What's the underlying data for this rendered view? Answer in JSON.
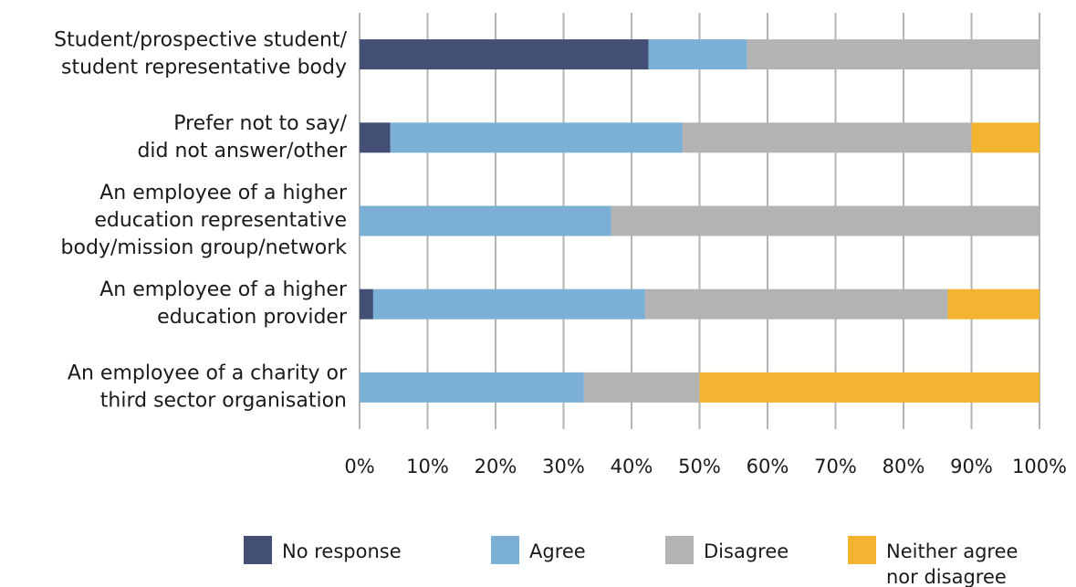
{
  "chart_data": {
    "type": "bar",
    "orientation": "horizontal",
    "stacked": true,
    "title": "",
    "xlabel": "",
    "ylabel": "",
    "xlim": [
      0,
      100
    ],
    "x_ticks": [
      "0%",
      "10%",
      "20%",
      "30%",
      "40%",
      "50%",
      "60%",
      "70%",
      "80%",
      "90%",
      "100%"
    ],
    "grid": "vertical",
    "legend_position": "bottom",
    "categories": [
      [
        "Student/prospective student/",
        "student representative body"
      ],
      [
        "Prefer not to say/",
        "did not answer/other"
      ],
      [
        "An employee of a higher",
        "education representative",
        "body/mission group/network"
      ],
      [
        "An employee of a higher",
        "education provider"
      ],
      [
        "An employee of a charity or",
        "third sector organisation"
      ]
    ],
    "series": [
      {
        "name": "No response",
        "color": "#434f75",
        "values": [
          42.5,
          4.5,
          0,
          2,
          0
        ]
      },
      {
        "name": "Agree",
        "color": "#7bafd4",
        "values": [
          14.5,
          43,
          37,
          40,
          33
        ]
      },
      {
        "name": "Disagree",
        "color": "#b3b3b3",
        "values": [
          43,
          42.5,
          63,
          44.5,
          17
        ]
      },
      {
        "name": "Neither agree nor disagree",
        "color": "#f2b431",
        "values": [
          0,
          10,
          0,
          13.5,
          50
        ]
      }
    ],
    "legend": [
      {
        "lines": [
          "No response"
        ]
      },
      {
        "lines": [
          "Agree"
        ]
      },
      {
        "lines": [
          "Disagree"
        ]
      },
      {
        "lines": [
          "Neither agree",
          "nor disagree"
        ]
      }
    ]
  }
}
